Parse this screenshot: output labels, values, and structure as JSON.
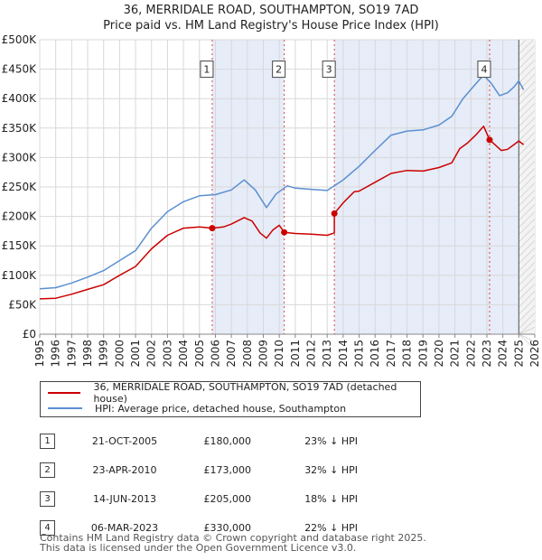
{
  "chart_data": {
    "type": "line",
    "title": "36, MERRIDALE ROAD, SOUTHAMPTON, SO19 7AD",
    "subtitle": "Price paid vs. HM Land Registry's House Price Index (HPI)",
    "xlabel": "",
    "ylabel": "",
    "xlim": [
      1995,
      2026
    ],
    "ylim": [
      0,
      500000
    ],
    "x_ticks": [
      "1995",
      "1996",
      "1997",
      "1998",
      "1999",
      "2000",
      "2001",
      "2002",
      "2003",
      "2004",
      "2005",
      "2006",
      "2007",
      "2008",
      "2009",
      "2010",
      "2011",
      "2012",
      "2013",
      "2014",
      "2015",
      "2016",
      "2017",
      "2018",
      "2019",
      "2020",
      "2021",
      "2022",
      "2023",
      "2024",
      "2025",
      "2026"
    ],
    "y_ticks": [
      {
        "value": 0,
        "label": "£0"
      },
      {
        "value": 50000,
        "label": "£50K"
      },
      {
        "value": 100000,
        "label": "£100K"
      },
      {
        "value": 150000,
        "label": "£150K"
      },
      {
        "value": 200000,
        "label": "£200K"
      },
      {
        "value": 250000,
        "label": "£250K"
      },
      {
        "value": 300000,
        "label": "£300K"
      },
      {
        "value": 350000,
        "label": "£350K"
      },
      {
        "value": 400000,
        "label": "£400K"
      },
      {
        "value": 450000,
        "label": "£450K"
      },
      {
        "value": 500000,
        "label": "£500K"
      }
    ],
    "series": [
      {
        "name": "36, MERRIDALE ROAD, SOUTHAMPTON, SO19 7AD (detached house)",
        "color": "#cc0000",
        "points": [
          [
            1995,
            60000
          ],
          [
            1996,
            61000
          ],
          [
            1997,
            68000
          ],
          [
            1998,
            76000
          ],
          [
            1999,
            84000
          ],
          [
            2000,
            100000
          ],
          [
            2001,
            115000
          ],
          [
            2002,
            145000
          ],
          [
            2003,
            168000
          ],
          [
            2004,
            180000
          ],
          [
            2005,
            182000
          ],
          [
            2005.8,
            180000
          ],
          [
            2006.5,
            182000
          ],
          [
            2007,
            187000
          ],
          [
            2007.8,
            198000
          ],
          [
            2008.3,
            192000
          ],
          [
            2008.8,
            172000
          ],
          [
            2009.2,
            163000
          ],
          [
            2009.6,
            177000
          ],
          [
            2010.0,
            185000
          ],
          [
            2010.31,
            173000
          ],
          [
            2011,
            171000
          ],
          [
            2012,
            170000
          ],
          [
            2013.0,
            168000
          ],
          [
            2013.45,
            172000
          ],
          [
            2013.45,
            205000
          ],
          [
            2014,
            223000
          ],
          [
            2014.7,
            242000
          ],
          [
            2015,
            243000
          ],
          [
            2016,
            258000
          ],
          [
            2017,
            273000
          ],
          [
            2018,
            278000
          ],
          [
            2019,
            277000
          ],
          [
            2020,
            283000
          ],
          [
            2020.8,
            291000
          ],
          [
            2021.3,
            315000
          ],
          [
            2021.8,
            325000
          ],
          [
            2022.3,
            338000
          ],
          [
            2022.8,
            353000
          ],
          [
            2023.17,
            330000
          ],
          [
            2023.5,
            322000
          ],
          [
            2023.9,
            312000
          ],
          [
            2024.3,
            314000
          ],
          [
            2024.7,
            322000
          ],
          [
            2025,
            328000
          ],
          [
            2025.3,
            322000
          ]
        ]
      },
      {
        "name": "HPI: Average price, detached house, Southampton",
        "color": "#5b8fd0",
        "points": [
          [
            1995,
            77000
          ],
          [
            1996,
            79000
          ],
          [
            1997,
            87000
          ],
          [
            1998,
            97000
          ],
          [
            1999,
            108000
          ],
          [
            2000,
            125000
          ],
          [
            2001,
            142000
          ],
          [
            2002,
            180000
          ],
          [
            2003,
            208000
          ],
          [
            2004,
            225000
          ],
          [
            2005,
            235000
          ],
          [
            2006,
            237000
          ],
          [
            2007,
            245000
          ],
          [
            2007.8,
            262000
          ],
          [
            2008.5,
            245000
          ],
          [
            2009.2,
            215000
          ],
          [
            2009.8,
            238000
          ],
          [
            2010.5,
            252000
          ],
          [
            2011,
            248000
          ],
          [
            2012,
            246000
          ],
          [
            2013,
            244000
          ],
          [
            2014,
            262000
          ],
          [
            2015,
            285000
          ],
          [
            2016,
            312000
          ],
          [
            2017,
            338000
          ],
          [
            2018,
            345000
          ],
          [
            2019,
            347000
          ],
          [
            2020,
            355000
          ],
          [
            2020.8,
            370000
          ],
          [
            2021.5,
            400000
          ],
          [
            2022.3,
            425000
          ],
          [
            2022.8,
            440000
          ],
          [
            2023.3,
            425000
          ],
          [
            2023.8,
            405000
          ],
          [
            2024.3,
            410000
          ],
          [
            2024.7,
            420000
          ],
          [
            2025,
            430000
          ],
          [
            2025.3,
            415000
          ]
        ]
      }
    ],
    "sales": [
      {
        "id": "1",
        "date": "21-OCT-2005",
        "x": 2005.8,
        "price": 180000,
        "price_label": "£180,000",
        "hpi": "23% ↓ HPI"
      },
      {
        "id": "2",
        "date": "23-APR-2010",
        "x": 2010.31,
        "price": 173000,
        "price_label": "£173,000",
        "hpi": "32% ↓ HPI"
      },
      {
        "id": "3",
        "date": "14-JUN-2013",
        "x": 2013.45,
        "price": 205000,
        "price_label": "£205,000",
        "hpi": "18% ↓ HPI"
      },
      {
        "id": "4",
        "date": "06-MAR-2023",
        "x": 2023.17,
        "price": 330000,
        "price_label": "£330,000",
        "hpi": "22% ↓ HPI"
      }
    ],
    "future_from": 2025.0,
    "marker_label_value": 450000
  },
  "legend": {
    "property_label": "36, MERRIDALE ROAD, SOUTHAMPTON, SO19 7AD (detached house)",
    "hpi_label": "HPI: Average price, detached house, Southampton",
    "property_color": "#cc0000",
    "hpi_color": "#5b8fd0"
  },
  "footer": {
    "line1": "Contains HM Land Registry data © Crown copyright and database right 2025.",
    "line2": "This data is licensed under the Open Government Licence v3.0."
  }
}
